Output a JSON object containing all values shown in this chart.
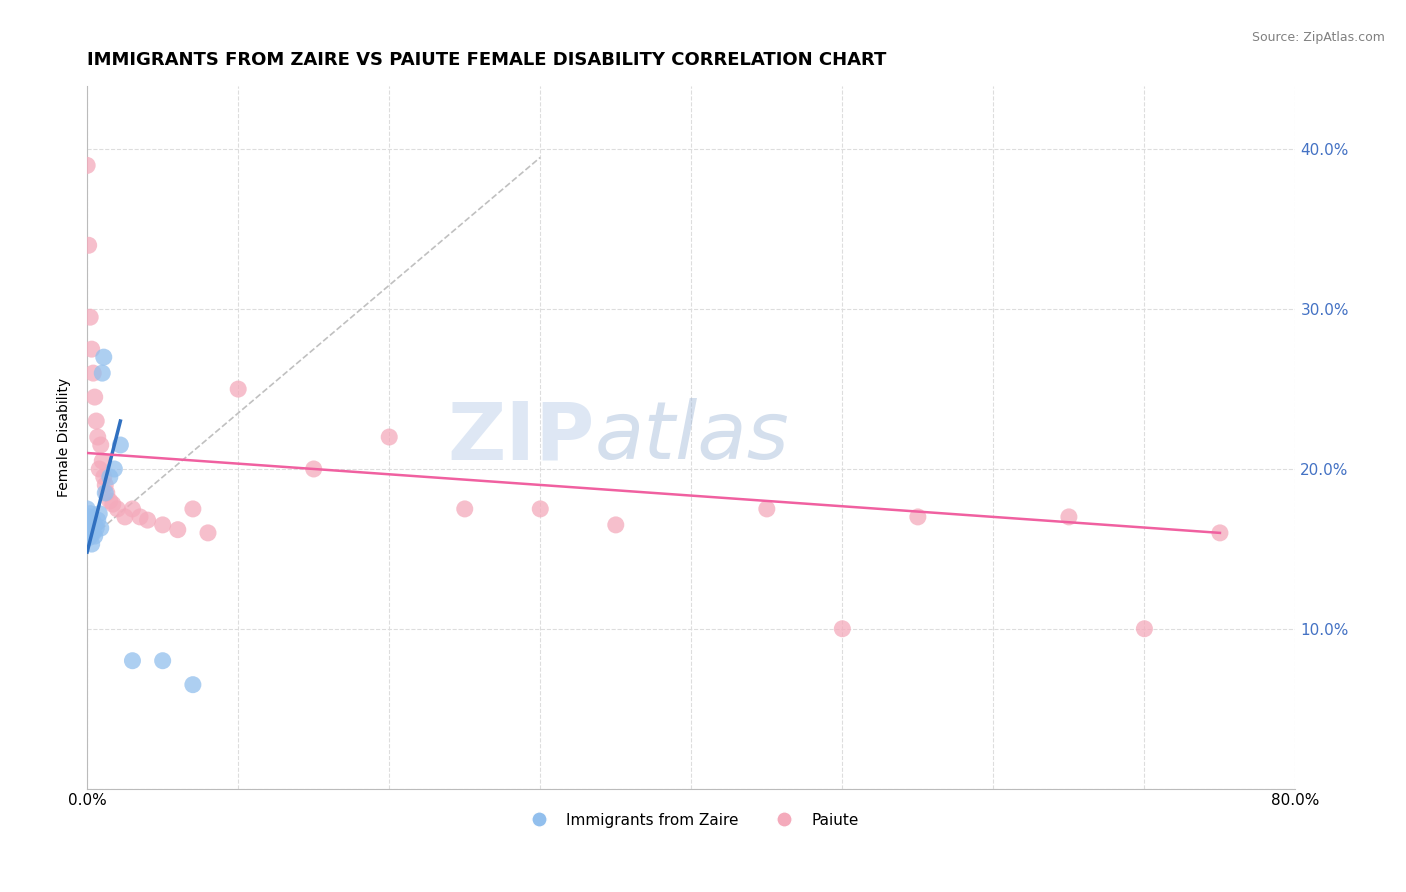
{
  "title": "IMMIGRANTS FROM ZAIRE VS PAIUTE FEMALE DISABILITY CORRELATION CHART",
  "source": "Source: ZipAtlas.com",
  "xlabel": "",
  "ylabel": "Female Disability",
  "xlim": [
    0.0,
    0.8
  ],
  "ylim": [
    0.0,
    0.44
  ],
  "blue_color": "#92BFED",
  "pink_color": "#F4AABB",
  "blue_line_color": "#3070C0",
  "pink_line_color": "#F060A0",
  "trendline_color": "#C0C0C0",
  "background_color": "#FFFFFF",
  "grid_color": "#DDDDDD",
  "title_fontsize": 13,
  "axis_fontsize": 10,
  "tick_fontsize": 11,
  "right_tick_color": "#4472C4",
  "blue_points": [
    [
      0.0,
      0.175
    ],
    [
      0.0,
      0.168
    ],
    [
      0.0,
      0.162
    ],
    [
      0.001,
      0.17
    ],
    [
      0.001,
      0.163
    ],
    [
      0.001,
      0.157
    ],
    [
      0.002,
      0.172
    ],
    [
      0.002,
      0.165
    ],
    [
      0.002,
      0.158
    ],
    [
      0.003,
      0.168
    ],
    [
      0.003,
      0.16
    ],
    [
      0.003,
      0.153
    ],
    [
      0.004,
      0.167
    ],
    [
      0.004,
      0.16
    ],
    [
      0.005,
      0.165
    ],
    [
      0.005,
      0.158
    ],
    [
      0.006,
      0.163
    ],
    [
      0.007,
      0.168
    ],
    [
      0.008,
      0.172
    ],
    [
      0.009,
      0.163
    ],
    [
      0.01,
      0.26
    ],
    [
      0.011,
      0.27
    ],
    [
      0.012,
      0.185
    ],
    [
      0.015,
      0.195
    ],
    [
      0.018,
      0.2
    ],
    [
      0.022,
      0.215
    ],
    [
      0.03,
      0.08
    ],
    [
      0.05,
      0.08
    ],
    [
      0.07,
      0.065
    ]
  ],
  "pink_points": [
    [
      0.0,
      0.39
    ],
    [
      0.001,
      0.34
    ],
    [
      0.002,
      0.295
    ],
    [
      0.003,
      0.275
    ],
    [
      0.004,
      0.26
    ],
    [
      0.005,
      0.245
    ],
    [
      0.006,
      0.23
    ],
    [
      0.007,
      0.22
    ],
    [
      0.008,
      0.2
    ],
    [
      0.009,
      0.215
    ],
    [
      0.01,
      0.205
    ],
    [
      0.011,
      0.195
    ],
    [
      0.012,
      0.19
    ],
    [
      0.013,
      0.185
    ],
    [
      0.015,
      0.18
    ],
    [
      0.017,
      0.178
    ],
    [
      0.02,
      0.175
    ],
    [
      0.025,
      0.17
    ],
    [
      0.03,
      0.175
    ],
    [
      0.035,
      0.17
    ],
    [
      0.04,
      0.168
    ],
    [
      0.05,
      0.165
    ],
    [
      0.06,
      0.162
    ],
    [
      0.07,
      0.175
    ],
    [
      0.08,
      0.16
    ],
    [
      0.1,
      0.25
    ],
    [
      0.15,
      0.2
    ],
    [
      0.2,
      0.22
    ],
    [
      0.25,
      0.175
    ],
    [
      0.3,
      0.175
    ],
    [
      0.35,
      0.165
    ],
    [
      0.45,
      0.175
    ],
    [
      0.5,
      0.1
    ],
    [
      0.55,
      0.17
    ],
    [
      0.65,
      0.17
    ],
    [
      0.7,
      0.1
    ],
    [
      0.75,
      0.16
    ]
  ],
  "blue_line_x": [
    0.0,
    0.022
  ],
  "blue_line_y": [
    0.148,
    0.23
  ],
  "pink_line_x": [
    0.0,
    0.75
  ],
  "pink_line_y": [
    0.21,
    0.16
  ],
  "dash_line_x": [
    0.0,
    0.3
  ],
  "dash_line_y": [
    0.155,
    0.395
  ]
}
